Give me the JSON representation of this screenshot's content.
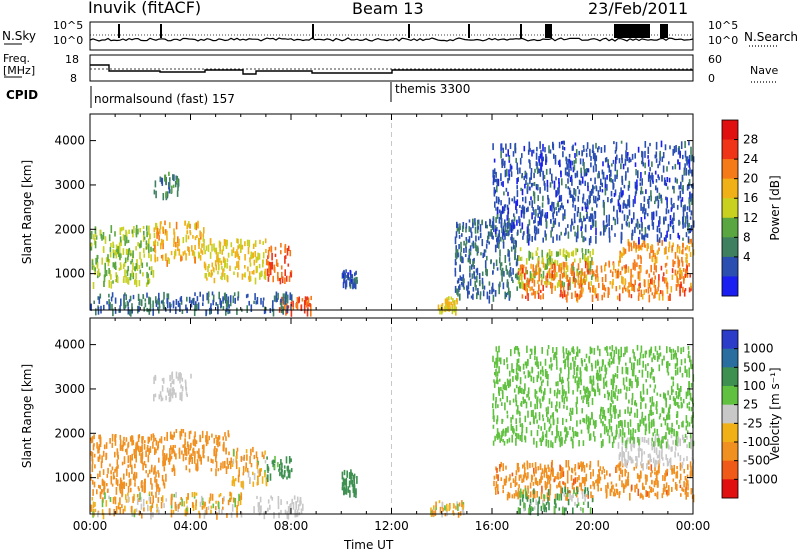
{
  "header": {
    "station": "Inuvik (fitACF)",
    "beam": "Beam 13",
    "date": "23/Feb/2011"
  },
  "panels": {
    "nsky": {
      "left_label": "N.Sky",
      "right_label": "N.Search",
      "left_ticks": [
        "10^5",
        "10^0"
      ],
      "right_ticks": [
        "10^5",
        "10^0"
      ]
    },
    "freq": {
      "left_label_1": "Freq.",
      "left_label_2": "[MHz]",
      "right_label": "Nave",
      "left_ticks": [
        "18",
        "8"
      ],
      "right_ticks": [
        "60",
        "0"
      ]
    },
    "cpid": {
      "label": "CPID",
      "modes": [
        {
          "name": "normalsound (fast) 157",
          "start_hour": 0
        },
        {
          "name": "themis 3300",
          "start_hour": 12
        }
      ]
    }
  },
  "chart_data": [
    {
      "type": "heatmap",
      "title": "",
      "xlabel": "",
      "ylabel": "Slant Range [km]",
      "x_range_hours": [
        0,
        24
      ],
      "ylim": [
        180,
        4600
      ],
      "y_ticks": [
        1000,
        2000,
        3000,
        4000
      ],
      "colorbar": {
        "label": "Power [dB]",
        "ticks": [
          4,
          8,
          12,
          16,
          20,
          24,
          28
        ],
        "colors": [
          "#1a1ef0",
          "#2a4fb0",
          "#3e8060",
          "#5aa640",
          "#c8d020",
          "#f0b018",
          "#f57a18",
          "#ef3418",
          "#e01010"
        ]
      },
      "scatter_regions": [
        {
          "hours": [
            0.0,
            2.5
          ],
          "range_km": [
            800,
            2100
          ],
          "level": 16
        },
        {
          "hours": [
            2.5,
            4.5
          ],
          "range_km": [
            1300,
            2200
          ],
          "level": 22
        },
        {
          "hours": [
            4.5,
            7.0
          ],
          "range_km": [
            900,
            1800
          ],
          "level": 20
        },
        {
          "hours": [
            7.0,
            8.0
          ],
          "range_km": [
            900,
            1700
          ],
          "level": 28
        },
        {
          "hours": [
            7.5,
            8.8
          ],
          "range_km": [
            180,
            500
          ],
          "level": 28
        },
        {
          "hours": [
            2.5,
            3.5
          ],
          "range_km": [
            2800,
            3300
          ],
          "level": 10
        },
        {
          "hours": [
            0.0,
            8.0
          ],
          "range_km": [
            180,
            600
          ],
          "level": 8
        },
        {
          "hours": [
            10.0,
            10.6
          ],
          "range_km": [
            800,
            1100
          ],
          "level": 6
        },
        {
          "hours": [
            13.8,
            14.6
          ],
          "range_km": [
            200,
            500
          ],
          "level": 20
        },
        {
          "hours": [
            14.5,
            17.0
          ],
          "range_km": [
            500,
            2300
          ],
          "level": 8
        },
        {
          "hours": [
            17.0,
            20.0
          ],
          "range_km": [
            800,
            1600
          ],
          "level": 16
        },
        {
          "hours": [
            17.0,
            24.0
          ],
          "range_km": [
            500,
            1300
          ],
          "level": 26
        },
        {
          "hours": [
            21.0,
            24.0
          ],
          "range_km": [
            1300,
            1800
          ],
          "level": 24
        },
        {
          "hours": [
            16.0,
            24.0
          ],
          "range_km": [
            1800,
            4000
          ],
          "level": 6
        }
      ]
    },
    {
      "type": "heatmap",
      "title": "",
      "xlabel": "Time UT",
      "ylabel": "Slant Range [km]",
      "x_range_hours": [
        0,
        24
      ],
      "x_tick_labels": [
        "00:00",
        "04:00",
        "08:00",
        "12:00",
        "16:00",
        "20:00",
        "00:00"
      ],
      "ylim": [
        180,
        4600
      ],
      "y_ticks": [
        1000,
        2000,
        3000,
        4000
      ],
      "colorbar": {
        "label": "Velocity [m s⁻¹]",
        "ticks": [
          1000,
          500,
          100,
          25,
          -25,
          -100,
          -500,
          -1000
        ],
        "colors": [
          "#2a3cc8",
          "#2a6ea0",
          "#3e9050",
          "#60c040",
          "#c8c8c8",
          "#f0b018",
          "#f09020",
          "#f05a18",
          "#e01010"
        ]
      },
      "scatter_regions": [
        {
          "hours": [
            0.0,
            3.0
          ],
          "range_km": [
            700,
            2000
          ],
          "level": -300
        },
        {
          "hours": [
            3.0,
            5.5
          ],
          "range_km": [
            1200,
            2100
          ],
          "level": -250
        },
        {
          "hours": [
            5.5,
            7.0
          ],
          "range_km": [
            900,
            1700
          ],
          "level": -80
        },
        {
          "hours": [
            7.0,
            8.0
          ],
          "range_km": [
            1000,
            1500
          ],
          "level": 200
        },
        {
          "hours": [
            2.5,
            4.0
          ],
          "range_km": [
            2800,
            3400
          ],
          "level": 0
        },
        {
          "hours": [
            6.5,
            8.5
          ],
          "range_km": [
            200,
            600
          ],
          "level": 0
        },
        {
          "hours": [
            0.0,
            6.0
          ],
          "range_km": [
            200,
            700
          ],
          "level": -60
        },
        {
          "hours": [
            10.0,
            10.6
          ],
          "range_km": [
            700,
            1200
          ],
          "level": 300
        },
        {
          "hours": [
            13.5,
            15.0
          ],
          "range_km": [
            200,
            500
          ],
          "level": -60
        },
        {
          "hours": [
            16.0,
            24.0
          ],
          "range_km": [
            600,
            1400
          ],
          "level": -400
        },
        {
          "hours": [
            21.0,
            24.0
          ],
          "range_km": [
            1300,
            2000
          ],
          "level": 0
        },
        {
          "hours": [
            17.0,
            20.0
          ],
          "range_km": [
            300,
            800
          ],
          "level": 100
        },
        {
          "hours": [
            16.0,
            24.0
          ],
          "range_km": [
            1800,
            4000
          ],
          "level": 40
        }
      ]
    }
  ]
}
